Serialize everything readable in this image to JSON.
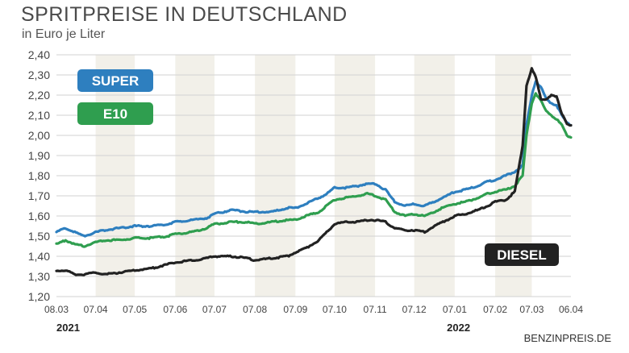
{
  "chart_data": {
    "type": "line",
    "title": "SPRITPREISE IN DEUTSCHLAND",
    "subtitle": "in Euro je Liter",
    "ylim": [
      1.2,
      2.4
    ],
    "yticks": [
      "2,40",
      "2,30",
      "2,20",
      "2,10",
      "2,00",
      "1,90",
      "1,80",
      "1,70",
      "1,60",
      "1,50",
      "1,40",
      "1,30",
      "1,20"
    ],
    "ytick_values": [
      2.4,
      2.3,
      2.2,
      2.1,
      2.0,
      1.9,
      1.8,
      1.7,
      1.6,
      1.5,
      1.4,
      1.3,
      1.2
    ],
    "xlim": [
      "2021-03-08",
      "2022-04-06"
    ],
    "xticks": [
      {
        "label": "08.03",
        "date": "2021-03-08"
      },
      {
        "label": "07.04",
        "date": "2021-04-07"
      },
      {
        "label": "07.05",
        "date": "2021-05-07"
      },
      {
        "label": "07.06",
        "date": "2021-06-07"
      },
      {
        "label": "07.07",
        "date": "2021-07-07"
      },
      {
        "label": "07.08",
        "date": "2021-08-07"
      },
      {
        "label": "07.09",
        "date": "2021-09-07"
      },
      {
        "label": "07.10",
        "date": "2021-10-07"
      },
      {
        "label": "07.11",
        "date": "2021-11-07"
      },
      {
        "label": "07.12",
        "date": "2021-12-07"
      },
      {
        "label": "07.01",
        "date": "2022-01-07"
      },
      {
        "label": "07.02",
        "date": "2022-02-07"
      },
      {
        "label": "07.03",
        "date": "2022-03-07"
      },
      {
        "label": "06.04",
        "date": "2022-04-06"
      }
    ],
    "year_labels": [
      {
        "label": "2021",
        "date": "2021-03-08"
      },
      {
        "label": "2022",
        "date": "2022-01-01"
      }
    ],
    "grid": true,
    "legend": "inline-labels",
    "series": [
      {
        "name": "SUPER",
        "color": "#2e7fbf",
        "x": [
          "2021-03-08",
          "2021-03-15",
          "2021-03-22",
          "2021-03-29",
          "2021-04-07",
          "2021-04-15",
          "2021-04-25",
          "2021-05-07",
          "2021-05-20",
          "2021-06-01",
          "2021-06-07",
          "2021-06-20",
          "2021-07-01",
          "2021-07-07",
          "2021-07-20",
          "2021-08-01",
          "2021-08-07",
          "2021-08-20",
          "2021-09-01",
          "2021-09-07",
          "2021-09-15",
          "2021-09-25",
          "2021-10-01",
          "2021-10-07",
          "2021-10-15",
          "2021-10-25",
          "2021-11-01",
          "2021-11-07",
          "2021-11-15",
          "2021-11-22",
          "2021-11-30",
          "2021-12-07",
          "2021-12-15",
          "2021-12-22",
          "2022-01-01",
          "2022-01-07",
          "2022-01-15",
          "2022-01-25",
          "2022-02-01",
          "2022-02-07",
          "2022-02-15",
          "2022-02-22",
          "2022-02-28",
          "2022-03-03",
          "2022-03-07",
          "2022-03-10",
          "2022-03-14",
          "2022-03-18",
          "2022-03-22",
          "2022-03-26",
          "2022-03-30",
          "2022-04-03",
          "2022-04-06"
        ],
        "y": [
          1.52,
          1.54,
          1.52,
          1.5,
          1.52,
          1.53,
          1.54,
          1.55,
          1.55,
          1.56,
          1.57,
          1.58,
          1.59,
          1.61,
          1.63,
          1.62,
          1.62,
          1.62,
          1.64,
          1.64,
          1.66,
          1.69,
          1.71,
          1.74,
          1.74,
          1.75,
          1.76,
          1.76,
          1.73,
          1.67,
          1.65,
          1.66,
          1.65,
          1.67,
          1.7,
          1.72,
          1.73,
          1.75,
          1.77,
          1.78,
          1.8,
          1.82,
          1.85,
          2.05,
          2.2,
          2.27,
          2.24,
          2.18,
          2.16,
          2.15,
          2.1,
          2.06,
          2.05
        ]
      },
      {
        "name": "E10",
        "color": "#2f9e4f",
        "x": [
          "2021-03-08",
          "2021-03-15",
          "2021-03-22",
          "2021-03-29",
          "2021-04-07",
          "2021-04-15",
          "2021-04-25",
          "2021-05-07",
          "2021-05-20",
          "2021-06-01",
          "2021-06-07",
          "2021-06-20",
          "2021-07-01",
          "2021-07-07",
          "2021-07-20",
          "2021-08-01",
          "2021-08-07",
          "2021-08-20",
          "2021-09-01",
          "2021-09-07",
          "2021-09-15",
          "2021-09-25",
          "2021-10-01",
          "2021-10-07",
          "2021-10-15",
          "2021-10-25",
          "2021-11-01",
          "2021-11-07",
          "2021-11-15",
          "2021-11-22",
          "2021-11-30",
          "2021-12-07",
          "2021-12-15",
          "2021-12-22",
          "2022-01-01",
          "2022-01-07",
          "2022-01-15",
          "2022-01-25",
          "2022-02-01",
          "2022-02-07",
          "2022-02-15",
          "2022-02-22",
          "2022-02-28",
          "2022-03-03",
          "2022-03-07",
          "2022-03-10",
          "2022-03-14",
          "2022-03-18",
          "2022-03-22",
          "2022-03-26",
          "2022-03-30",
          "2022-04-03",
          "2022-04-06"
        ],
        "y": [
          1.46,
          1.48,
          1.46,
          1.45,
          1.47,
          1.48,
          1.48,
          1.49,
          1.49,
          1.5,
          1.51,
          1.52,
          1.54,
          1.56,
          1.57,
          1.57,
          1.56,
          1.57,
          1.58,
          1.58,
          1.6,
          1.62,
          1.65,
          1.68,
          1.69,
          1.7,
          1.71,
          1.7,
          1.68,
          1.62,
          1.6,
          1.61,
          1.6,
          1.62,
          1.65,
          1.66,
          1.67,
          1.69,
          1.71,
          1.72,
          1.73,
          1.75,
          1.8,
          2.0,
          2.16,
          2.21,
          2.17,
          2.12,
          2.1,
          2.08,
          2.05,
          2.0,
          1.99
        ]
      },
      {
        "name": "DIESEL",
        "color": "#222222",
        "x": [
          "2021-03-08",
          "2021-03-15",
          "2021-03-22",
          "2021-03-29",
          "2021-04-07",
          "2021-04-15",
          "2021-04-25",
          "2021-05-07",
          "2021-05-20",
          "2021-06-01",
          "2021-06-07",
          "2021-06-20",
          "2021-07-01",
          "2021-07-07",
          "2021-07-20",
          "2021-08-01",
          "2021-08-07",
          "2021-08-20",
          "2021-09-01",
          "2021-09-07",
          "2021-09-15",
          "2021-09-25",
          "2021-10-01",
          "2021-10-07",
          "2021-10-15",
          "2021-10-25",
          "2021-11-01",
          "2021-11-07",
          "2021-11-15",
          "2021-11-22",
          "2021-11-30",
          "2021-12-07",
          "2021-12-15",
          "2021-12-22",
          "2022-01-01",
          "2022-01-07",
          "2022-01-15",
          "2022-01-25",
          "2022-02-01",
          "2022-02-07",
          "2022-02-15",
          "2022-02-22",
          "2022-02-28",
          "2022-03-03",
          "2022-03-07",
          "2022-03-10",
          "2022-03-14",
          "2022-03-18",
          "2022-03-22",
          "2022-03-26",
          "2022-03-30",
          "2022-04-03",
          "2022-04-06"
        ],
        "y": [
          1.33,
          1.33,
          1.31,
          1.31,
          1.32,
          1.31,
          1.32,
          1.33,
          1.34,
          1.36,
          1.37,
          1.38,
          1.39,
          1.4,
          1.4,
          1.39,
          1.38,
          1.39,
          1.4,
          1.42,
          1.44,
          1.48,
          1.52,
          1.56,
          1.57,
          1.57,
          1.58,
          1.58,
          1.57,
          1.54,
          1.53,
          1.53,
          1.52,
          1.55,
          1.58,
          1.6,
          1.61,
          1.63,
          1.65,
          1.67,
          1.68,
          1.72,
          1.95,
          2.25,
          2.33,
          2.29,
          2.18,
          2.18,
          2.2,
          2.19,
          2.11,
          2.06,
          2.05
        ]
      }
    ],
    "labels": [
      {
        "text": "SUPER",
        "series": "SUPER",
        "color": "#2e7fbf"
      },
      {
        "text": "E10",
        "series": "E10",
        "color": "#2f9e4f"
      },
      {
        "text": "DIESEL",
        "series": "DIESEL",
        "color": "#222222"
      }
    ],
    "source": "BENZINPREIS.DE"
  }
}
